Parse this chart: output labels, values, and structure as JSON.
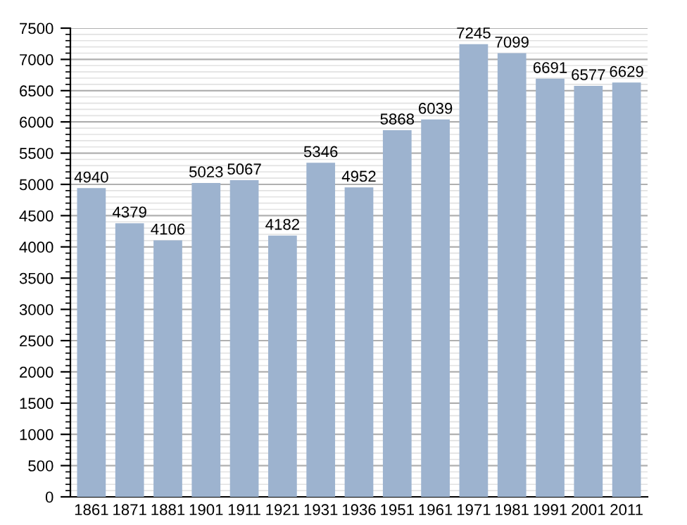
{
  "chart_data": {
    "type": "bar",
    "categories": [
      "1861",
      "1871",
      "1881",
      "1901",
      "1911",
      "1921",
      "1931",
      "1936",
      "1951",
      "1961",
      "1971",
      "1981",
      "1991",
      "2001",
      "2011"
    ],
    "values": [
      4940,
      4379,
      4106,
      5023,
      5067,
      4182,
      5346,
      4952,
      5868,
      6039,
      7245,
      7099,
      6691,
      6577,
      6629
    ],
    "color": "#9db3cf",
    "ylim": [
      0,
      7500
    ],
    "yticks": [
      0,
      500,
      1000,
      1500,
      2000,
      2500,
      3000,
      3500,
      4000,
      4500,
      5000,
      5500,
      6000,
      6500,
      7000,
      7500
    ],
    "grid": "y",
    "data_labels": true
  }
}
